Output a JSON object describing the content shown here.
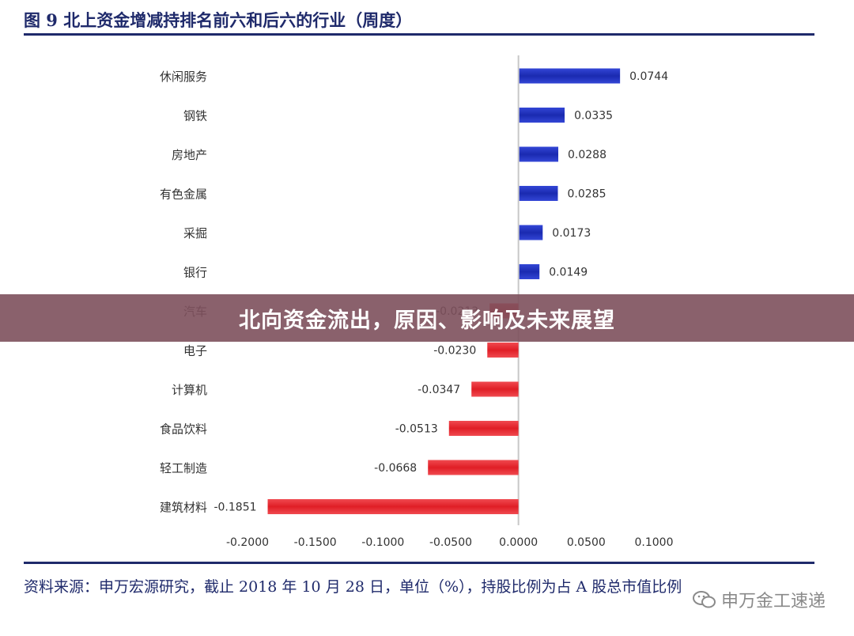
{
  "figure": {
    "title": "图 9 北上资金增减持排名前六和后六的行业（周度）"
  },
  "source_note": "资料来源：申万宏源研究，截止 2018 年 10 月 28 日，单位（%），持股比例为占 A 股总市值比例",
  "banner_text": "北向资金流出，原因、影响及未来展望",
  "watermark": {
    "text": "申万金工速递",
    "icon": "wechat-icon"
  },
  "colors": {
    "positive": "#1a2ab0",
    "negative": "#e01e26",
    "rule": "#1f2a6b",
    "banner": "#7d505c"
  },
  "chart_data": {
    "type": "bar",
    "orientation": "horizontal",
    "categories": [
      "休闲服务",
      "钢铁",
      "房地产",
      "有色金属",
      "采掘",
      "银行",
      "汽车",
      "电子",
      "计算机",
      "食品饮料",
      "轻工制造",
      "建筑材料"
    ],
    "values": [
      0.0744,
      0.0335,
      0.0288,
      0.0285,
      0.0173,
      0.0149,
      -0.0213,
      -0.023,
      -0.0347,
      -0.0513,
      -0.0668,
      -0.1851
    ],
    "data_labels": [
      "0.0744",
      "0.0335",
      "0.0288",
      "0.0285",
      "0.0173",
      "0.0149",
      "-0.0213",
      "-0.0230",
      "-0.0347",
      "-0.0513",
      "-0.0668",
      "-0.1851"
    ],
    "xlim": [
      -0.2,
      0.1
    ],
    "xticks": [
      -0.2,
      -0.15,
      -0.1,
      -0.05,
      0,
      0.05,
      0.1
    ],
    "xtick_labels": [
      "-0.2000",
      "-0.1500",
      "-0.1000",
      "-0.0500",
      "0.0000",
      "0.0500",
      "0.1000"
    ],
    "grid": false,
    "legend": "none"
  }
}
